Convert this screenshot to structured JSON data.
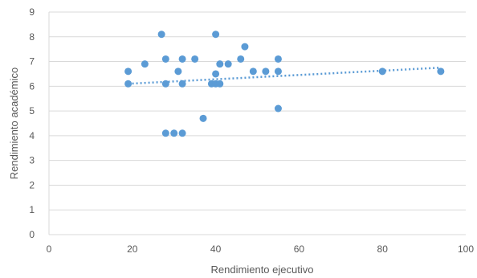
{
  "chart_data": {
    "type": "scatter",
    "xlabel": "Rendimiento ejecutivo",
    "ylabel": "Rendimiento académico",
    "xlim": [
      0,
      100
    ],
    "ylim": [
      0,
      9
    ],
    "xticks": [
      0,
      20,
      40,
      60,
      80,
      100
    ],
    "yticks": [
      0,
      1,
      2,
      3,
      4,
      5,
      6,
      7,
      8,
      9
    ],
    "grid": "horizontal",
    "color": "#5b9bd5",
    "points": [
      {
        "x": 19,
        "y": 6.6
      },
      {
        "x": 19,
        "y": 6.1
      },
      {
        "x": 23,
        "y": 6.9
      },
      {
        "x": 27,
        "y": 8.1
      },
      {
        "x": 28,
        "y": 7.1
      },
      {
        "x": 28,
        "y": 6.1
      },
      {
        "x": 28,
        "y": 4.1
      },
      {
        "x": 30,
        "y": 4.1
      },
      {
        "x": 31,
        "y": 6.6
      },
      {
        "x": 32,
        "y": 7.1
      },
      {
        "x": 32,
        "y": 6.1
      },
      {
        "x": 32,
        "y": 4.1
      },
      {
        "x": 35,
        "y": 7.1
      },
      {
        "x": 37,
        "y": 4.7
      },
      {
        "x": 39,
        "y": 6.1
      },
      {
        "x": 40,
        "y": 8.1
      },
      {
        "x": 40,
        "y": 6.5
      },
      {
        "x": 40,
        "y": 6.1
      },
      {
        "x": 41,
        "y": 6.9
      },
      {
        "x": 41,
        "y": 6.1
      },
      {
        "x": 43,
        "y": 6.9
      },
      {
        "x": 46,
        "y": 7.1
      },
      {
        "x": 47,
        "y": 7.6
      },
      {
        "x": 49,
        "y": 6.6
      },
      {
        "x": 52,
        "y": 6.6
      },
      {
        "x": 55,
        "y": 7.1
      },
      {
        "x": 55,
        "y": 6.6
      },
      {
        "x": 55,
        "y": 5.1
      },
      {
        "x": 80,
        "y": 6.6
      },
      {
        "x": 94,
        "y": 6.6
      }
    ],
    "trendline": {
      "type": "linear",
      "style": "dotted",
      "x": [
        19,
        94
      ],
      "y": [
        6.1,
        6.75
      ]
    }
  }
}
